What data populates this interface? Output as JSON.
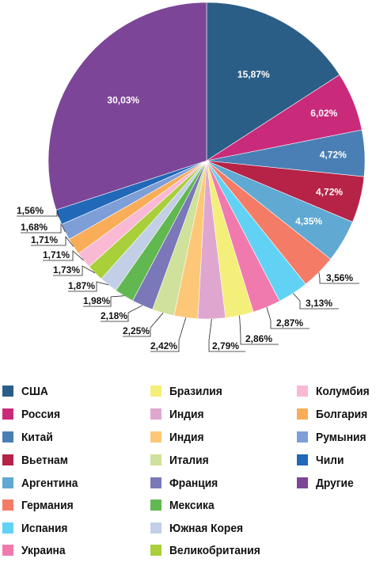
{
  "chart_data": {
    "type": "pie",
    "slices": [
      {
        "name": "США",
        "value": 15.87,
        "label": "15,87%",
        "color": "#2b5e86"
      },
      {
        "name": "Россия",
        "value": 6.02,
        "label": "6,02%",
        "color": "#c92a7a"
      },
      {
        "name": "Китай",
        "value": 4.72,
        "label": "4,72%",
        "color": "#4a7fb5"
      },
      {
        "name": "Вьетнам",
        "value": 4.72,
        "label": "4,72%",
        "color": "#b62347"
      },
      {
        "name": "Аргентина",
        "value": 4.35,
        "label": "4,35%",
        "color": "#5fa9d3"
      },
      {
        "name": "Германия",
        "value": 3.56,
        "label": "3,56%",
        "color": "#f47c67"
      },
      {
        "name": "Испания",
        "value": 3.13,
        "label": "3,13%",
        "color": "#62d2f4"
      },
      {
        "name": "Украина",
        "value": 2.87,
        "label": "2,87%",
        "color": "#f07aae"
      },
      {
        "name": "Бразилия",
        "value": 2.86,
        "label": "2,86%",
        "color": "#f4ee7a"
      },
      {
        "name": "Индия",
        "value": 2.79,
        "label": "2,79%",
        "color": "#dfa7cf"
      },
      {
        "name": "Индия",
        "value": 2.42,
        "label": "2,42%",
        "color": "#fcc878"
      },
      {
        "name": "Италия",
        "value": 2.25,
        "label": "2,25%",
        "color": "#cfe19a"
      },
      {
        "name": "Франция",
        "value": 2.18,
        "label": "2,18%",
        "color": "#7a78b8"
      },
      {
        "name": "Мексика",
        "value": 1.98,
        "label": "1,98%",
        "color": "#62b850"
      },
      {
        "name": "Южная Корея",
        "value": 1.87,
        "label": "1,87%",
        "color": "#c2cfe7"
      },
      {
        "name": "Великобритания",
        "value": 1.73,
        "label": "1,73%",
        "color": "#a9cf3a"
      },
      {
        "name": "Колумбия",
        "value": 1.71,
        "label": "1,71%",
        "color": "#f9b9d4"
      },
      {
        "name": "Болгария",
        "value": 1.71,
        "label": "1,71%",
        "color": "#f9ad58"
      },
      {
        "name": "Румыния",
        "value": 1.68,
        "label": "1,68%",
        "color": "#7d9ed6"
      },
      {
        "name": "Чили",
        "value": 1.56,
        "label": "1,56%",
        "color": "#2168b8"
      },
      {
        "name": "Другие",
        "value": 30.03,
        "label": "30,03%",
        "color": "#7d4597"
      }
    ],
    "start_angle": "12 o'clock",
    "direction": "clockwise",
    "labels": "inside for first five slices and Другие, outside with leader lines for the rest",
    "legend_placement": "bottom, three columns"
  }
}
